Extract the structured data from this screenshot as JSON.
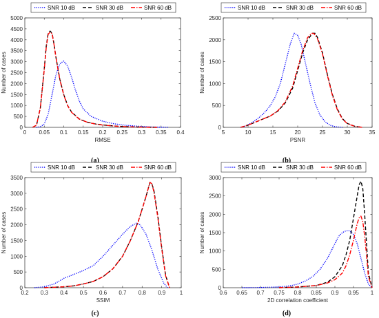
{
  "legend_entries": [
    {
      "label": "SNR 10 dB",
      "color": "#0000ff",
      "dash": "dotted"
    },
    {
      "label": "SNR 30 dB",
      "color": "#000000",
      "dash": "dashed"
    },
    {
      "label": "SNR 60 dB",
      "color": "#ff0000",
      "dash": "dashdot"
    }
  ],
  "chart_data": [
    {
      "type": "line",
      "caption": "(a)",
      "xlabel": "RMSE",
      "ylabel": "Number of cases",
      "xlim": [
        0,
        0.4
      ],
      "ylim": [
        0,
        5000
      ],
      "xticks": [
        0,
        0.05,
        0.1,
        0.15,
        0.2,
        0.25,
        0.3,
        0.35,
        0.4
      ],
      "xtick_labels": [
        "0",
        "0.05",
        "0.1",
        "0.15",
        "0.2",
        "0.25",
        "0.3",
        "0.35",
        "0.4"
      ],
      "yticks": [
        0,
        500,
        1000,
        1500,
        2000,
        2500,
        3000,
        3500,
        4000,
        4500,
        5000
      ],
      "ytick_labels": [
        "0",
        "500",
        "1000",
        "1500",
        "2000",
        "2500",
        "3000",
        "3500",
        "4000",
        "4500",
        "5000"
      ],
      "legend_position": "top",
      "series": [
        {
          "name": "SNR 10 dB",
          "x": [
            0.03,
            0.04,
            0.05,
            0.06,
            0.07,
            0.08,
            0.09,
            0.1,
            0.11,
            0.12,
            0.13,
            0.14,
            0.15,
            0.17,
            0.2,
            0.23,
            0.26,
            0.3,
            0.34,
            0.37
          ],
          "y": [
            0,
            30,
            150,
            600,
            1500,
            2400,
            2900,
            3030,
            2800,
            2300,
            1700,
            1200,
            850,
            500,
            280,
            160,
            90,
            40,
            10,
            0
          ]
        },
        {
          "name": "SNR 30 dB",
          "x": [
            0.02,
            0.03,
            0.04,
            0.05,
            0.055,
            0.06,
            0.065,
            0.07,
            0.075,
            0.08,
            0.09,
            0.1,
            0.11,
            0.12,
            0.14,
            0.16,
            0.18,
            0.2,
            0.23,
            0.26,
            0.3,
            0.34
          ],
          "y": [
            0,
            100,
            900,
            2700,
            3700,
            4300,
            4400,
            4300,
            3800,
            3200,
            2200,
            1500,
            1000,
            700,
            380,
            240,
            160,
            110,
            60,
            30,
            10,
            0
          ]
        },
        {
          "name": "SNR 60 dB",
          "x": [
            0.02,
            0.03,
            0.04,
            0.05,
            0.055,
            0.06,
            0.065,
            0.07,
            0.075,
            0.08,
            0.09,
            0.1,
            0.11,
            0.12,
            0.14,
            0.16,
            0.18,
            0.2,
            0.23,
            0.26,
            0.3,
            0.34
          ],
          "y": [
            0,
            100,
            900,
            2650,
            3650,
            4250,
            4350,
            4280,
            3780,
            3180,
            2180,
            1480,
            990,
            690,
            370,
            235,
            155,
            105,
            58,
            28,
            9,
            0
          ]
        }
      ]
    },
    {
      "type": "line",
      "caption": "(b)",
      "xlabel": "PSNR",
      "ylabel": "Number of cases",
      "xlim": [
        5,
        35
      ],
      "ylim": [
        0,
        2500
      ],
      "xticks": [
        5,
        10,
        15,
        20,
        25,
        30,
        35
      ],
      "xtick_labels": [
        "5",
        "10",
        "15",
        "20",
        "25",
        "30",
        "35"
      ],
      "yticks": [
        0,
        500,
        1000,
        1500,
        2000,
        2500
      ],
      "ytick_labels": [
        "0",
        "500",
        "1000",
        "1500",
        "2000",
        "2500"
      ],
      "legend_position": "top",
      "series": [
        {
          "name": "SNR 10 dB",
          "x": [
            8.5,
            9.5,
            10.5,
            11.5,
            12.5,
            13.5,
            14.5,
            15.5,
            16.5,
            17.5,
            18.5,
            19.3,
            20,
            20.7,
            21.5,
            22.5,
            23.5,
            24.5,
            25.5,
            26.5,
            27.5,
            29
          ],
          "y": [
            0,
            30,
            90,
            160,
            250,
            360,
            500,
            700,
            1000,
            1450,
            1900,
            2150,
            2100,
            1900,
            1500,
            1000,
            550,
            280,
            130,
            50,
            15,
            0
          ]
        },
        {
          "name": "SNR 30 dB",
          "x": [
            8.5,
            10,
            11.5,
            13,
            14.5,
            16,
            17.5,
            19,
            20,
            21,
            22,
            23,
            23.5,
            24,
            25,
            26,
            27,
            28,
            29,
            30,
            31.5,
            33
          ],
          "y": [
            0,
            50,
            120,
            190,
            260,
            370,
            560,
            900,
            1300,
            1700,
            2000,
            2150,
            2150,
            2050,
            1700,
            1200,
            750,
            420,
            200,
            90,
            25,
            0
          ]
        },
        {
          "name": "SNR 60 dB",
          "x": [
            8.5,
            10,
            11.5,
            13,
            14.5,
            16,
            17.5,
            19,
            20,
            21,
            22,
            22.8,
            23.3,
            24,
            25,
            26,
            27,
            28,
            29,
            30,
            31.5,
            33
          ],
          "y": [
            0,
            50,
            120,
            190,
            260,
            380,
            580,
            950,
            1350,
            1750,
            2050,
            2150,
            2140,
            2020,
            1680,
            1180,
            730,
            400,
            190,
            85,
            22,
            0
          ]
        }
      ]
    },
    {
      "type": "line",
      "caption": "(c)",
      "xlabel": "SSIM",
      "ylabel": "Number of cases",
      "xlim": [
        0.2,
        1
      ],
      "ylim": [
        0,
        3500
      ],
      "xticks": [
        0.2,
        0.3,
        0.4,
        0.5,
        0.6,
        0.7,
        0.8,
        0.9,
        1
      ],
      "xtick_labels": [
        "0.2",
        "0.3",
        "0.4",
        "0.5",
        "0.6",
        "0.7",
        "0.8",
        "0.9",
        "1"
      ],
      "yticks": [
        0,
        500,
        1000,
        1500,
        2000,
        2500,
        3000,
        3500
      ],
      "ytick_labels": [
        "0",
        "500",
        "1000",
        "1500",
        "2000",
        "2500",
        "3000",
        "3500"
      ],
      "legend_position": "top",
      "series": [
        {
          "name": "SNR 10 dB",
          "x": [
            0.25,
            0.3,
            0.35,
            0.4,
            0.45,
            0.5,
            0.55,
            0.6,
            0.65,
            0.7,
            0.74,
            0.77,
            0.79,
            0.82,
            0.85,
            0.88,
            0.91,
            0.93
          ],
          "y": [
            0,
            30,
            120,
            300,
            420,
            550,
            700,
            1000,
            1350,
            1700,
            1950,
            2050,
            2000,
            1700,
            1200,
            600,
            150,
            0
          ]
        },
        {
          "name": "SNR 30 dB",
          "x": [
            0.3,
            0.4,
            0.45,
            0.5,
            0.55,
            0.6,
            0.65,
            0.7,
            0.74,
            0.78,
            0.8,
            0.82,
            0.84,
            0.85,
            0.86,
            0.88,
            0.9,
            0.92,
            0.94
          ],
          "y": [
            0,
            30,
            60,
            120,
            200,
            350,
            600,
            1000,
            1500,
            2100,
            2500,
            2900,
            3350,
            3300,
            3100,
            2300,
            1300,
            400,
            0
          ]
        },
        {
          "name": "SNR 60 dB",
          "x": [
            0.3,
            0.4,
            0.45,
            0.5,
            0.55,
            0.6,
            0.65,
            0.7,
            0.74,
            0.78,
            0.8,
            0.82,
            0.84,
            0.85,
            0.86,
            0.88,
            0.9,
            0.92,
            0.94
          ],
          "y": [
            0,
            30,
            60,
            120,
            200,
            350,
            600,
            1000,
            1500,
            2100,
            2500,
            2900,
            3350,
            3300,
            3050,
            2250,
            1250,
            380,
            0
          ]
        }
      ]
    },
    {
      "type": "line",
      "caption": "(d)",
      "xlabel": "2D correlation coefficient",
      "ylabel": "Number of cases",
      "xlim": [
        0.6,
        1
      ],
      "ylim": [
        0,
        3000
      ],
      "xticks": [
        0.6,
        0.65,
        0.7,
        0.75,
        0.8,
        0.85,
        0.9,
        0.95,
        1
      ],
      "xtick_labels": [
        "0.6",
        "0.65",
        "0.7",
        "0.75",
        "0.8",
        "0.85",
        "0.9",
        "0.95",
        "1"
      ],
      "yticks": [
        0,
        500,
        1000,
        1500,
        2000,
        2500,
        3000
      ],
      "ytick_labels": [
        "0",
        "500",
        "1000",
        "1500",
        "2000",
        "2500",
        "3000"
      ],
      "legend_position": "top",
      "series": [
        {
          "name": "SNR 10 dB",
          "x": [
            0.65,
            0.7,
            0.75,
            0.78,
            0.8,
            0.82,
            0.84,
            0.86,
            0.88,
            0.9,
            0.91,
            0.92,
            0.93,
            0.94,
            0.95,
            0.96,
            0.97,
            0.98,
            0.99,
            1.0
          ],
          "y": [
            0,
            5,
            20,
            50,
            100,
            180,
            300,
            500,
            800,
            1200,
            1400,
            1500,
            1550,
            1550,
            1450,
            1200,
            800,
            400,
            100,
            0
          ]
        },
        {
          "name": "SNR 30 dB",
          "x": [
            0.75,
            0.8,
            0.85,
            0.88,
            0.9,
            0.92,
            0.93,
            0.94,
            0.95,
            0.96,
            0.965,
            0.97,
            0.975,
            0.98,
            0.985,
            0.99,
            1.0
          ],
          "y": [
            0,
            20,
            60,
            150,
            300,
            600,
            900,
            1300,
            1900,
            2500,
            2800,
            2900,
            2700,
            2000,
            1200,
            400,
            0
          ]
        },
        {
          "name": "SNR 60 dB",
          "x": [
            0.75,
            0.8,
            0.85,
            0.88,
            0.9,
            0.92,
            0.93,
            0.94,
            0.95,
            0.96,
            0.965,
            0.97,
            0.975,
            0.98,
            0.985,
            0.99,
            1.0
          ],
          "y": [
            0,
            20,
            60,
            130,
            220,
            400,
            600,
            900,
            1300,
            1750,
            1900,
            1950,
            1800,
            1400,
            900,
            300,
            0
          ]
        }
      ]
    }
  ]
}
